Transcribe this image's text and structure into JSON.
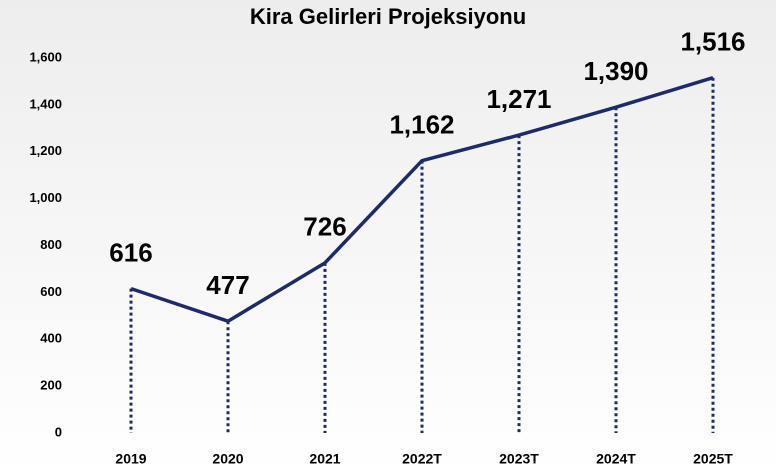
{
  "chart_data": {
    "type": "line",
    "title": "Kira Gelirleri Projeksiyonu",
    "categories": [
      "2019",
      "2020",
      "2021",
      "2022T",
      "2023T",
      "2024T",
      "2025T"
    ],
    "values": [
      616,
      477,
      726,
      1162,
      1271,
      1390,
      1516
    ],
    "value_labels": [
      "616",
      "477",
      "726",
      "1,162",
      "1,271",
      "1,390",
      "1,516"
    ],
    "color": "#1c2b6e",
    "ylim": [
      0,
      1600
    ],
    "yticks": [
      0,
      200,
      400,
      600,
      800,
      {
        "value": 1000,
        "label": "1,000"
      },
      {
        "value": 1200,
        "label": "1,200"
      },
      {
        "value": 1400,
        "label": "1,400"
      },
      {
        "value": 1600,
        "label": "1,600"
      }
    ],
    "grid": false
  }
}
